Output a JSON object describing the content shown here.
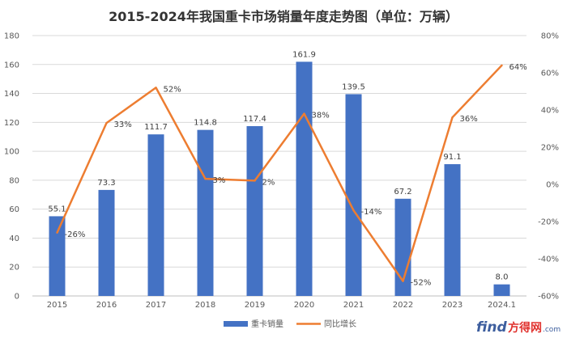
{
  "watermark": {
    "brand": "find",
    "cn": "方得网",
    "domain": ".com"
  },
  "chart_data": {
    "type": "bar",
    "title": "2015-2024年我国重卡市场销量年度走势图（单位：万辆）",
    "categories": [
      "2015",
      "2016",
      "2017",
      "2018",
      "2019",
      "2020",
      "2021",
      "2022",
      "2023",
      "2024.1"
    ],
    "series": [
      {
        "name": "重卡销量",
        "type": "bar",
        "axis": "left",
        "color": "#4472c4",
        "values": [
          55.1,
          73.3,
          111.7,
          114.8,
          117.4,
          161.9,
          139.5,
          67.2,
          91.1,
          8.0
        ],
        "labels": [
          "55.1",
          "73.3",
          "111.7",
          "114.8",
          "117.4",
          "161.9",
          "139.5",
          "67.2",
          "91.1",
          "8.0"
        ]
      },
      {
        "name": "同比增长",
        "type": "line",
        "axis": "right",
        "color": "#ed7d31",
        "values": [
          -26,
          33,
          52,
          3,
          2,
          38,
          -14,
          -52,
          36,
          64
        ],
        "labels": [
          "-26%",
          "33%",
          "52%",
          "3%",
          "2%",
          "38%",
          "-14%",
          "-52%",
          "36%",
          "64%"
        ]
      }
    ],
    "y_left": {
      "range": [
        0,
        180
      ],
      "ticks": [
        0,
        20,
        40,
        60,
        80,
        100,
        120,
        140,
        160,
        180
      ],
      "tick_labels": [
        "0",
        "20",
        "40",
        "60",
        "80",
        "100",
        "120",
        "140",
        "160",
        "180"
      ]
    },
    "y_right": {
      "range": [
        -60,
        80
      ],
      "ticks": [
        -60,
        -40,
        -20,
        0,
        20,
        40,
        60,
        80
      ],
      "tick_labels": [
        "-60%",
        "-40%",
        "-20%",
        "0%",
        "20%",
        "40%",
        "60%",
        "80%"
      ]
    },
    "grid": true,
    "legend": "bottom-center"
  }
}
